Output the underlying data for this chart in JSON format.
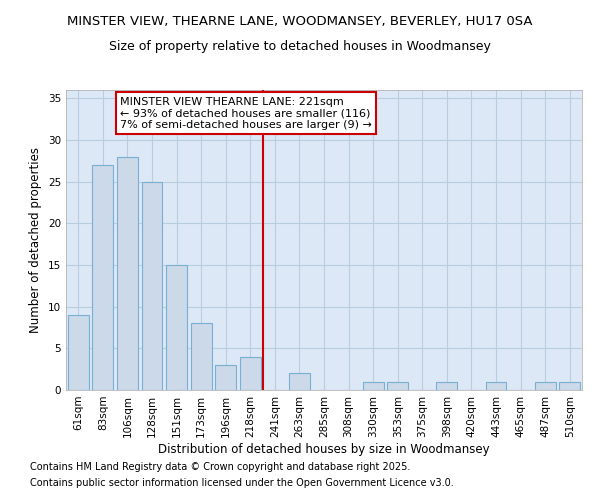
{
  "title": "MINSTER VIEW, THEARNE LANE, WOODMANSEY, BEVERLEY, HU17 0SA",
  "subtitle": "Size of property relative to detached houses in Woodmansey",
  "xlabel": "Distribution of detached houses by size in Woodmansey",
  "ylabel": "Number of detached properties",
  "categories": [
    "61sqm",
    "83sqm",
    "106sqm",
    "128sqm",
    "151sqm",
    "173sqm",
    "196sqm",
    "218sqm",
    "241sqm",
    "263sqm",
    "285sqm",
    "308sqm",
    "330sqm",
    "353sqm",
    "375sqm",
    "398sqm",
    "420sqm",
    "443sqm",
    "465sqm",
    "487sqm",
    "510sqm"
  ],
  "values": [
    9,
    27,
    28,
    25,
    15,
    8,
    3,
    4,
    0,
    2,
    0,
    0,
    1,
    1,
    0,
    1,
    0,
    1,
    0,
    1,
    1
  ],
  "bar_color": "#ccd9e8",
  "bar_edge_color": "#7aafd4",
  "plot_bg_color": "#dce8f5",
  "fig_bg_color": "#ffffff",
  "grid_color": "#b8cee0",
  "ref_line_x": 7.5,
  "ref_line_label": "MINSTER VIEW THEARNE LANE: 221sqm",
  "ref_line_color": "#cc0000",
  "annotation_line1": "← 93% of detached houses are smaller (116)",
  "annotation_line2": "7% of semi-detached houses are larger (9) →",
  "annotation_box_color": "#cc0000",
  "ylim": [
    0,
    36
  ],
  "yticks": [
    0,
    5,
    10,
    15,
    20,
    25,
    30,
    35
  ],
  "footnote1": "Contains HM Land Registry data © Crown copyright and database right 2025.",
  "footnote2": "Contains public sector information licensed under the Open Government Licence v3.0.",
  "title_fontsize": 9.5,
  "subtitle_fontsize": 9,
  "axis_label_fontsize": 8.5,
  "tick_fontsize": 7.5,
  "annotation_fontsize": 8,
  "footnote_fontsize": 7
}
